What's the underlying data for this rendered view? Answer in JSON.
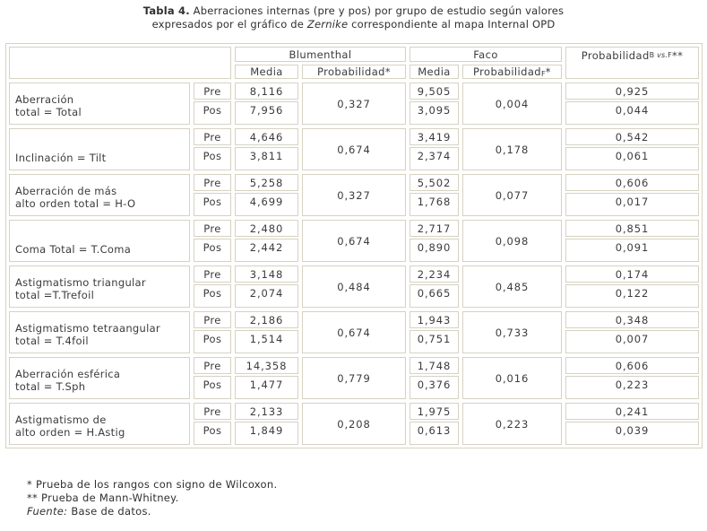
{
  "title": {
    "bold": "Tabla 4.",
    "line1_rest": " Aberraciones internas (pre y pos) por grupo de estudio según valores",
    "line2_pre": "expresados por el gráfico de ",
    "line2_italic": "Zernike",
    "line2_post": " correspondiente al mapa Internal OPD"
  },
  "table": {
    "header": {
      "blumenthal": "Blumenthal",
      "faco": "Faco",
      "media_b": "Media",
      "prob_b": "Probabilidad*",
      "media_f": "Media",
      "prob_f_main": "Probabilidad",
      "prob_f_sub": "F",
      "prob_f_star": "*",
      "prob_bvf_main": "Probabilidad",
      "prob_bvf_sub_b": "B ",
      "prob_bvf_sub_vs": "vs.",
      "prob_bvf_sub_f": "F",
      "prob_bvf_stars": "**"
    },
    "pre_label": "Pre",
    "pos_label": "Pos",
    "rows": [
      {
        "label": "Aberración\ntotal = Total",
        "pre_b": "8,116",
        "pos_b": "7,956",
        "prob_b": "0,327",
        "pre_f": "9,505",
        "pos_f": "3,095",
        "prob_f": "0,004",
        "prob_bvf_pre": "0,925",
        "prob_bvf_pos": "0,044"
      },
      {
        "label": "Inclinación = Tilt",
        "pre_b": "4,646",
        "pos_b": "3,811",
        "prob_b": "0,674",
        "pre_f": "3,419",
        "pos_f": "2,374",
        "prob_f": "0,178",
        "prob_bvf_pre": "0,542",
        "prob_bvf_pos": "0,061"
      },
      {
        "label": "Aberración de más\nalto orden total = H-O",
        "pre_b": "5,258",
        "pos_b": "4,699",
        "prob_b": "0,327",
        "pre_f": "5,502",
        "pos_f": "1,768",
        "prob_f": "0,077",
        "prob_bvf_pre": "0,606",
        "prob_bvf_pos": "0,017"
      },
      {
        "label": "Coma Total = T.Coma",
        "pre_b": "2,480",
        "pos_b": "2,442",
        "prob_b": "0,674",
        "pre_f": "2,717",
        "pos_f": "0,890",
        "prob_f": "0,098",
        "prob_bvf_pre": "0,851",
        "prob_bvf_pos": "0,091"
      },
      {
        "label": "Astigmatismo triangular\ntotal =T.Trefoil",
        "pre_b": "3,148",
        "pos_b": "2,074",
        "prob_b": "0,484",
        "pre_f": "2,234",
        "pos_f": "0,665",
        "prob_f": "0,485",
        "prob_bvf_pre": "0,174",
        "prob_bvf_pos": "0,122"
      },
      {
        "label": "Astigmatismo tetraangular\ntotal = T.4foil",
        "pre_b": "2,186",
        "pos_b": "1,514",
        "prob_b": "0,674",
        "pre_f": "1,943",
        "pos_f": "0,751",
        "prob_f": "0,733",
        "prob_bvf_pre": "0,348",
        "prob_bvf_pos": "0,007"
      },
      {
        "label": "Aberración esférica\ntotal = T.Sph",
        "pre_b": "14,358",
        "pos_b": "1,477",
        "prob_b": "0,779",
        "pre_f": "1,748",
        "pos_f": "0,376",
        "prob_f": "0,016",
        "prob_bvf_pre": "0,606",
        "prob_bvf_pos": "0,223"
      },
      {
        "label": "Astigmatismo de\nalto orden = H.Astig",
        "pre_b": "2,133",
        "pos_b": "1,849",
        "prob_b": "0,208",
        "pre_f": "1,975",
        "pos_f": "0,613",
        "prob_f": "0,223",
        "prob_bvf_pre": "0,241",
        "prob_bvf_pos": "0,039"
      }
    ]
  },
  "footnotes": {
    "note1": "* Prueba de los rangos con signo de Wilcoxon.",
    "note2": "** Prueba de Mann-Whitney.",
    "fuente_label": "Fuente:",
    "fuente_text": " Base de datos."
  },
  "colors": {
    "border": "#d6d2c2",
    "text": "#3b3b3b",
    "background": "#ffffff"
  }
}
